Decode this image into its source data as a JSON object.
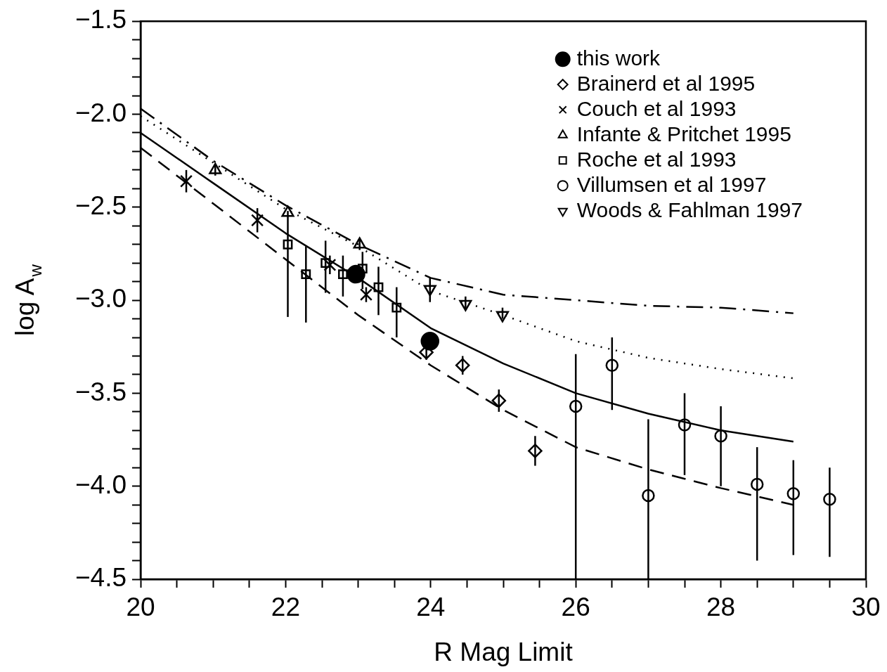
{
  "chart_data": {
    "type": "scatter",
    "xlabel": "R Mag Limit",
    "ylabel": "log A$_{w}$",
    "legend": "top right",
    "xlim": [
      20,
      30
    ],
    "ylim": [
      -4.5,
      -1.5
    ],
    "xticks": [
      20,
      {
        "value": 20.5,
        "label": null
      },
      {
        "value": 21,
        "label": null
      },
      {
        "value": 21.5,
        "label": null
      },
      22,
      {
        "value": 22.5,
        "label": null
      },
      {
        "value": 23,
        "label": null
      },
      {
        "value": 23.5,
        "label": null
      },
      24,
      {
        "value": 24.5,
        "label": null
      },
      {
        "value": 25,
        "label": null
      },
      {
        "value": 25.5,
        "label": null
      },
      26,
      {
        "value": 26.5,
        "label": null
      },
      {
        "value": 27,
        "label": null
      },
      {
        "value": 27.5,
        "label": null
      },
      28,
      {
        "value": 28.5,
        "label": null
      },
      {
        "value": 29,
        "label": null
      },
      {
        "value": 29.5,
        "label": null
      },
      30
    ],
    "yticks": [
      {
        "value": -1.5,
        "label": "−1.5"
      },
      {
        "value": -1.6,
        "label": null
      },
      {
        "value": -1.7,
        "label": null
      },
      {
        "value": -1.8,
        "label": null
      },
      {
        "value": -1.9,
        "label": null
      },
      {
        "value": -2.0,
        "label": "−2.0"
      },
      {
        "value": -2.1,
        "label": null
      },
      {
        "value": -2.2,
        "label": null
      },
      {
        "value": -2.3,
        "label": null
      },
      {
        "value": -2.4,
        "label": null
      },
      {
        "value": -2.5,
        "label": "−2.5"
      },
      {
        "value": -2.6,
        "label": null
      },
      {
        "value": -2.7,
        "label": null
      },
      {
        "value": -2.8,
        "label": null
      },
      {
        "value": -2.9,
        "label": null
      },
      {
        "value": -3.0,
        "label": "−3.0"
      },
      {
        "value": -3.1,
        "label": null
      },
      {
        "value": -3.2,
        "label": null
      },
      {
        "value": -3.3,
        "label": null
      },
      {
        "value": -3.4,
        "label": null
      },
      {
        "value": -3.5,
        "label": "−3.5"
      },
      {
        "value": -3.6,
        "label": null
      },
      {
        "value": -3.7,
        "label": null
      },
      {
        "value": -3.8,
        "label": null
      },
      {
        "value": -3.9,
        "label": null
      },
      {
        "value": -4.0,
        "label": "−4.0"
      },
      {
        "value": -4.1,
        "label": null
      },
      {
        "value": -4.2,
        "label": null
      },
      {
        "value": -4.3,
        "label": null
      },
      {
        "value": -4.4,
        "label": null
      },
      {
        "value": -4.5,
        "label": "−4.5"
      }
    ],
    "series": [
      {
        "type": "line",
        "color": "#000000",
        "line_style": "solid",
        "marker": "none",
        "x": [
          20,
          21,
          22,
          23,
          24,
          25,
          26,
          27,
          28,
          29
        ],
        "values": [
          -2.1,
          -2.37,
          -2.64,
          -2.88,
          -3.15,
          -3.34,
          -3.5,
          -3.61,
          -3.7,
          -3.76
        ]
      },
      {
        "type": "line",
        "color": "#000000",
        "line_style": "dashed",
        "marker": "none",
        "x": [
          20,
          21,
          22,
          23,
          24,
          25,
          26,
          27,
          28,
          29
        ],
        "values": [
          -2.18,
          -2.48,
          -2.78,
          -3.08,
          -3.35,
          -3.59,
          -3.79,
          -3.91,
          -4.01,
          -4.1
        ]
      },
      {
        "type": "line",
        "color": "#000000",
        "line_style": "dotted",
        "marker": "none",
        "x": [
          20,
          21,
          22,
          23,
          24,
          25,
          26,
          27,
          28,
          29
        ],
        "values": [
          -2.01,
          -2.26,
          -2.51,
          -2.71,
          -2.95,
          -3.08,
          -3.22,
          -3.31,
          -3.37,
          -3.42
        ]
      },
      {
        "type": "line",
        "color": "#000000",
        "line_style": "dashdot",
        "marker": "none",
        "x": [
          20,
          21,
          22,
          23,
          24,
          25,
          26,
          27,
          28,
          29
        ],
        "values": [
          -1.97,
          -2.25,
          -2.49,
          -2.7,
          -2.88,
          -2.97,
          -3.0,
          -3.03,
          -3.04,
          -3.07
        ]
      },
      {
        "name": "this work",
        "color": "#000000",
        "marker": "circle",
        "x": [
          22.97,
          23.99
        ],
        "values": [
          -2.86,
          -3.22
        ]
      },
      {
        "name": "Brainerd et al 1995",
        "color": "#000000",
        "marker": "diamond",
        "x": [
          23.94,
          24.44,
          24.94,
          25.44
        ],
        "values": [
          -3.28,
          -3.35,
          -3.54,
          -3.81
        ],
        "errors": [
          0.04,
          0.05,
          0.06,
          0.08
        ]
      },
      {
        "name": "Couch et al 1993",
        "color": "#000000",
        "marker": "cross",
        "x": [
          20.63,
          21.61,
          22.61,
          23.11
        ],
        "values": [
          -2.36,
          -2.57,
          -2.81,
          -2.97
        ],
        "errors": [
          0.06,
          0.065,
          0.05,
          0.04
        ]
      },
      {
        "name": "Infante & Pritchet 1995",
        "color": "#000000",
        "marker": "triangle",
        "x": [
          21.03,
          22.03,
          23.02
        ],
        "values": [
          -2.3,
          -2.53,
          -2.7
        ],
        "errors": [
          0.03,
          null,
          0.03
        ]
      },
      {
        "name": "Roche et al 1993",
        "color": "#000000",
        "marker": "square",
        "x": [
          22.03,
          22.28,
          22.55,
          22.79,
          23.06,
          23.28,
          23.53
        ],
        "values": [
          -2.7,
          -2.86,
          -2.8,
          -2.86,
          -2.83,
          -2.93,
          -3.04
        ],
        "errors": [
          [
            -3.09,
            -2.52
          ],
          [
            -3.12,
            -2.71
          ],
          [
            -2.96,
            -2.68
          ],
          [
            -2.98,
            -2.76
          ],
          [
            -2.94,
            -2.74
          ],
          [
            -3.08,
            -2.82
          ],
          [
            -3.2,
            -2.93
          ]
        ]
      },
      {
        "name": "Villumsen et al 1997",
        "color": "#000000",
        "marker": "circle",
        "x": [
          26,
          26.5,
          27,
          27.5,
          28,
          28.5,
          29,
          29.5
        ],
        "values": [
          -3.57,
          -3.35,
          -4.05,
          -3.67,
          -3.73,
          -3.99,
          -4.04,
          -4.07
        ],
        "errors": [
          [
            -4.5,
            -3.29
          ],
          [
            -3.59,
            -3.2
          ],
          [
            -4.5,
            -3.64
          ],
          [
            -3.94,
            -3.5
          ],
          [
            -4.0,
            -3.57
          ],
          [
            -4.4,
            -3.79
          ],
          [
            -4.37,
            -3.86
          ],
          [
            -4.38,
            -3.9
          ]
        ]
      },
      {
        "name": "Woods & Fahlman 1997",
        "color": "#000000",
        "marker": "triangle_down",
        "x": [
          23.99,
          24.48,
          24.99
        ],
        "values": [
          -2.94,
          -3.02,
          -3.08
        ],
        "errors": [
          [
            -3.01,
            -2.88
          ],
          [
            -3.05,
            -2.98
          ],
          [
            -3.1,
            -3.04
          ]
        ]
      }
    ]
  }
}
